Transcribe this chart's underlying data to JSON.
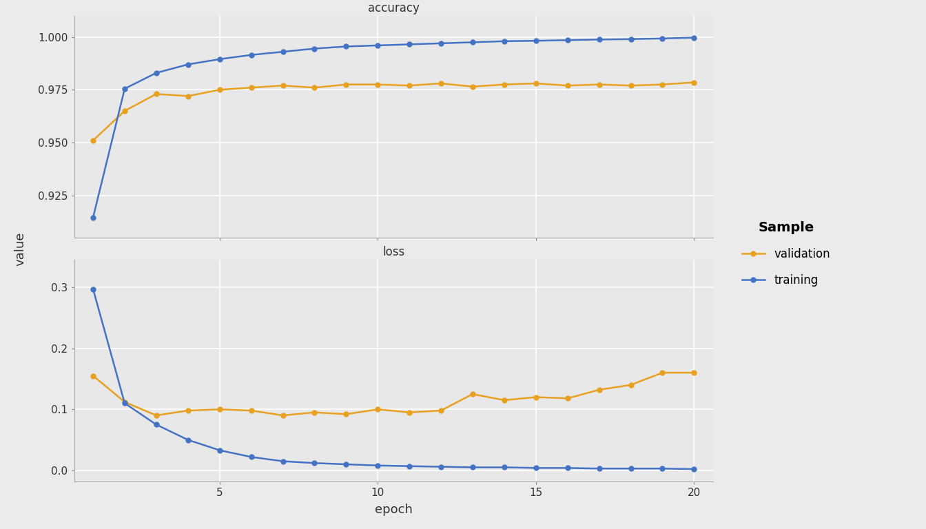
{
  "epochs": [
    1,
    2,
    3,
    4,
    5,
    6,
    7,
    8,
    9,
    10,
    11,
    12,
    13,
    14,
    15,
    16,
    17,
    18,
    19,
    20
  ],
  "accuracy_validation": [
    0.951,
    0.965,
    0.973,
    0.972,
    0.975,
    0.976,
    0.977,
    0.976,
    0.9775,
    0.9775,
    0.977,
    0.978,
    0.9765,
    0.9775,
    0.978,
    0.977,
    0.9775,
    0.977,
    0.9775,
    0.9785
  ],
  "accuracy_training": [
    0.9145,
    0.9755,
    0.983,
    0.987,
    0.9895,
    0.9915,
    0.993,
    0.9945,
    0.9955,
    0.996,
    0.9965,
    0.997,
    0.9975,
    0.998,
    0.9982,
    0.9985,
    0.9988,
    0.999,
    0.9993,
    0.9997
  ],
  "loss_validation": [
    0.155,
    0.112,
    0.09,
    0.098,
    0.1,
    0.098,
    0.09,
    0.095,
    0.092,
    0.1,
    0.095,
    0.098,
    0.125,
    0.115,
    0.12,
    0.118,
    0.132,
    0.14,
    0.16,
    0.16
  ],
  "loss_training": [
    0.297,
    0.11,
    0.075,
    0.05,
    0.033,
    0.022,
    0.015,
    0.012,
    0.01,
    0.008,
    0.007,
    0.006,
    0.005,
    0.005,
    0.004,
    0.004,
    0.003,
    0.003,
    0.003,
    0.002
  ],
  "color_validation": "#E8A020",
  "color_training": "#4472C4",
  "background_fig": "#EBEBEB",
  "background_plot": "#E8E8E8",
  "background_strip": "#D9D9D9",
  "grid_color": "#FFFFFF",
  "title_accuracy": "accuracy",
  "title_loss": "loss",
  "xlabel": "epoch",
  "ylabel": "value",
  "legend_title": "Sample",
  "legend_labels": [
    "validation",
    "training"
  ],
  "marker": "o",
  "linewidth": 1.8,
  "markersize": 5,
  "acc_yticks": [
    0.925,
    0.95,
    0.975,
    1.0
  ],
  "acc_ylim": [
    0.905,
    1.01
  ],
  "loss_yticks": [
    0.0,
    0.1,
    0.2,
    0.3
  ],
  "loss_ylim": [
    -0.018,
    0.345
  ],
  "xticks": [
    5,
    10,
    15,
    20
  ],
  "xlim": [
    0.4,
    20.6
  ]
}
